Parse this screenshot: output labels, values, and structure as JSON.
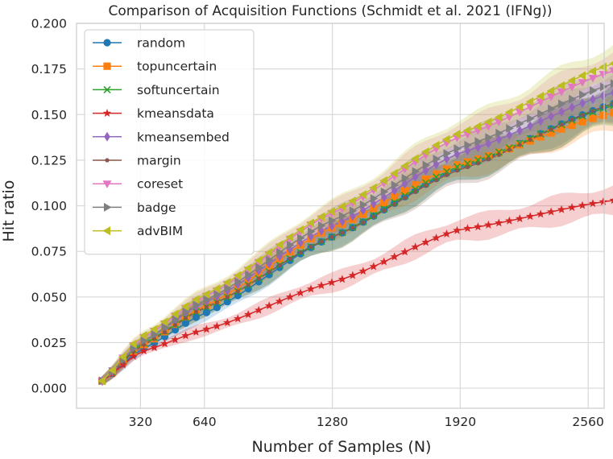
{
  "chart_data": {
    "type": "line",
    "title": "Comparison of Acquisition Functions (Schmidt et al. 2021 (IFNg))",
    "xlabel": "Number of Samples (N)",
    "ylabel": "Hit ratio",
    "xlim": [
      0,
      2640
    ],
    "ylim": [
      -0.011,
      0.2
    ],
    "xticks": [
      320,
      640,
      1280,
      1920,
      2560
    ],
    "xtick_labels": [
      "320",
      "640",
      "1280",
      "1920",
      "2560"
    ],
    "yticks": [
      0.0,
      0.025,
      0.05,
      0.075,
      0.1,
      0.125,
      0.15,
      0.175,
      0.2
    ],
    "ytick_labels": [
      "0.000",
      "0.025",
      "0.050",
      "0.075",
      "0.100",
      "0.125",
      "0.150",
      "0.175",
      "0.200"
    ],
    "grid": true,
    "legend_position": "upper-left",
    "x_range": [
      128,
      2688
    ],
    "num_points": 50,
    "series": [
      {
        "name": "random",
        "color": "#1f77b4",
        "marker": "circle",
        "anchors": [
          [
            128,
            0.004
          ],
          [
            320,
            0.021
          ],
          [
            640,
            0.041
          ],
          [
            1280,
            0.083
          ],
          [
            1920,
            0.121
          ],
          [
            2688,
            0.156
          ]
        ],
        "band": 0.01
      },
      {
        "name": "topuncertain",
        "color": "#ff7f0e",
        "marker": "square",
        "anchors": [
          [
            128,
            0.004
          ],
          [
            320,
            0.023
          ],
          [
            640,
            0.045
          ],
          [
            1280,
            0.088
          ],
          [
            1920,
            0.123
          ],
          [
            2688,
            0.151
          ]
        ],
        "band": 0.01
      },
      {
        "name": "softuncertain",
        "color": "#2ca02c",
        "marker": "x",
        "anchors": [
          [
            128,
            0.004
          ],
          [
            320,
            0.024
          ],
          [
            640,
            0.044
          ],
          [
            1280,
            0.083
          ],
          [
            1920,
            0.122
          ],
          [
            2688,
            0.155
          ]
        ],
        "band": 0.011
      },
      {
        "name": "kmeansdata",
        "color": "#d62728",
        "marker": "star",
        "anchors": [
          [
            128,
            0.004
          ],
          [
            320,
            0.02
          ],
          [
            640,
            0.032
          ],
          [
            1280,
            0.058
          ],
          [
            1920,
            0.087
          ],
          [
            2688,
            0.103
          ]
        ],
        "band": 0.008
      },
      {
        "name": "kmeansembed",
        "color": "#9467bd",
        "marker": "diamond",
        "anchors": [
          [
            128,
            0.004
          ],
          [
            320,
            0.025
          ],
          [
            640,
            0.047
          ],
          [
            1280,
            0.089
          ],
          [
            1920,
            0.129
          ],
          [
            2688,
            0.162
          ]
        ],
        "band": 0.01
      },
      {
        "name": "margin",
        "color": "#8c564b",
        "marker": "point",
        "anchors": [
          [
            128,
            0.004
          ],
          [
            320,
            0.023
          ],
          [
            640,
            0.044
          ],
          [
            1280,
            0.083
          ],
          [
            1920,
            0.12
          ],
          [
            2688,
            0.156
          ]
        ],
        "band": 0.011
      },
      {
        "name": "coreset",
        "color": "#e377c2",
        "marker": "triangle-down",
        "anchors": [
          [
            128,
            0.004
          ],
          [
            320,
            0.027
          ],
          [
            640,
            0.05
          ],
          [
            1280,
            0.096
          ],
          [
            1920,
            0.138
          ],
          [
            2688,
            0.174
          ]
        ],
        "band": 0.01
      },
      {
        "name": "badge",
        "color": "#7f7f7f",
        "marker": "triangle-right",
        "anchors": [
          [
            128,
            0.004
          ],
          [
            320,
            0.025
          ],
          [
            640,
            0.048
          ],
          [
            1280,
            0.092
          ],
          [
            1920,
            0.132
          ],
          [
            2688,
            0.167
          ]
        ],
        "band": 0.01
      },
      {
        "name": "advBIM",
        "color": "#bcbd22",
        "marker": "triangle-left",
        "anchors": [
          [
            128,
            0.004
          ],
          [
            320,
            0.028
          ],
          [
            640,
            0.051
          ],
          [
            1280,
            0.097
          ],
          [
            1920,
            0.14
          ],
          [
            2688,
            0.178
          ]
        ],
        "band": 0.01
      }
    ]
  }
}
